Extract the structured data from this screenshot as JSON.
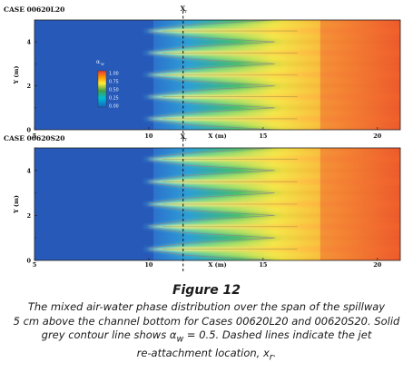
{
  "chart_data": [
    {
      "type": "heatmap",
      "panel_label": "CASE 00620L20",
      "xlabel": "X (m)",
      "ylabel": "Y (m)",
      "x_range": [
        5,
        21
      ],
      "y_range": [
        0,
        5
      ],
      "x_ticks": [
        "5",
        "10",
        "15",
        "20"
      ],
      "y_ticks": [
        "0",
        "2",
        "4"
      ],
      "y_ticks_minor": [
        "1",
        "3",
        "5"
      ],
      "jets": 5,
      "reattachment_label": "X",
      "reattachment_subscript": "r",
      "reattachment_x": 11.5,
      "colorbar": {
        "title": "α",
        "title_subscript": "w",
        "levels": [
          "1.00",
          "0.75",
          "0.50",
          "0.25",
          "0.00"
        ]
      }
    },
    {
      "type": "heatmap",
      "panel_label": "CASE 00620S20",
      "xlabel": "X (m)",
      "ylabel": "Y (m)",
      "x_range": [
        5,
        21
      ],
      "y_range": [
        0,
        5
      ],
      "x_ticks": [
        "5",
        "10",
        "15",
        "20"
      ],
      "y_ticks": [
        "0",
        "2",
        "4"
      ],
      "y_ticks_minor": [
        "1",
        "3",
        "5"
      ],
      "jets": 5,
      "reattachment_label": "X",
      "reattachment_subscript": "r",
      "reattachment_x": 11.5
    }
  ],
  "caption": {
    "title": "Figure 12",
    "line1": "The mixed air-water phase distribution over the span of the spillway",
    "line2": "5 cm above the channel bottom for Cases 00620L20 and 00620S20. Solid",
    "line3a": "grey contour line shows α",
    "line3_sub": "w",
    "line3b": " = 0.5. Dashed lines indicate the jet",
    "line4a": "re-attachment location, x",
    "line4_sub": "r",
    "line4b": "."
  },
  "colors": {
    "colormap": [
      "#1565c0",
      "#00bcd4",
      "#43a047",
      "#ffeb3b",
      "#ff9800",
      "#e53935"
    ],
    "contour": "#888888"
  }
}
